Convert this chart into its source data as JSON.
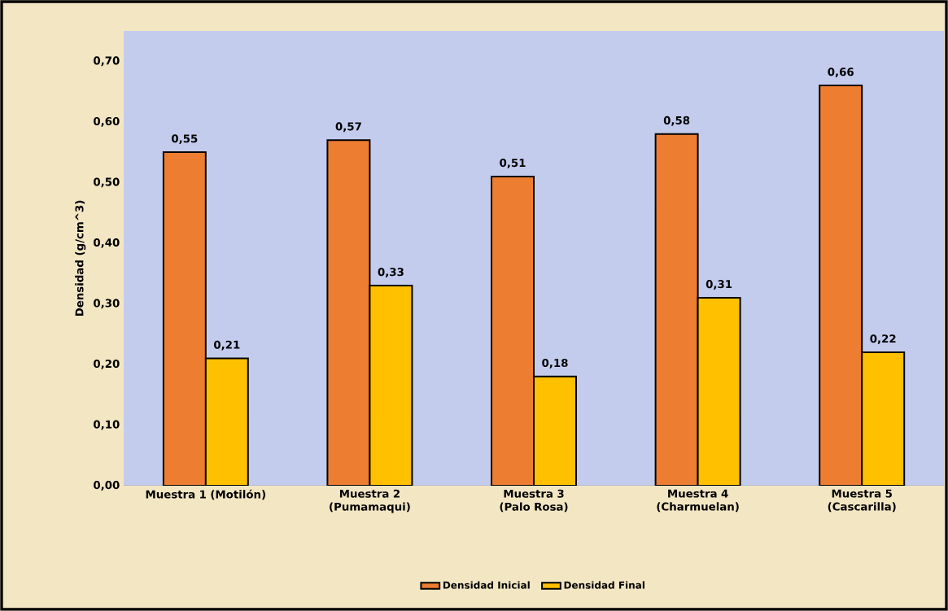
{
  "chart_data": {
    "type": "bar",
    "ylabel": "Densidad (g/cm^3)",
    "categories": [
      "Muestra 1 (Motilón)",
      "Muestra 2 (Pumamaqui)",
      "Muestra 3 (Palo Rosa)",
      "Muestra 4 (Charmuelan)",
      "Muestra 5 (Cascarilla)"
    ],
    "series": [
      {
        "name": "Densidad Inicial",
        "color": "#ed7d31",
        "values": [
          0.55,
          0.57,
          0.51,
          0.58,
          0.66
        ],
        "value_labels": [
          "0,55",
          "0,57",
          "0,51",
          "0,58",
          "0,66"
        ]
      },
      {
        "name": "Densidad Final",
        "color": "#ffc000",
        "values": [
          0.21,
          0.33,
          0.18,
          0.31,
          0.22
        ],
        "value_labels": [
          "0,21",
          "0,33",
          "0,18",
          "0,31",
          "0,22"
        ]
      }
    ],
    "ylim": [
      0,
      0.75
    ],
    "yticks": [
      {
        "value": 0,
        "label": "0,00"
      },
      {
        "value": 0.1,
        "label": "0,10"
      },
      {
        "value": 0.2,
        "label": "0,20"
      },
      {
        "value": 0.3,
        "label": "0,30"
      },
      {
        "value": 0.4,
        "label": "0,40"
      },
      {
        "value": 0.5,
        "label": "0,50"
      },
      {
        "value": 0.6,
        "label": "0,60"
      },
      {
        "value": 0.7,
        "label": "0,70"
      }
    ],
    "legend": "bottom"
  }
}
